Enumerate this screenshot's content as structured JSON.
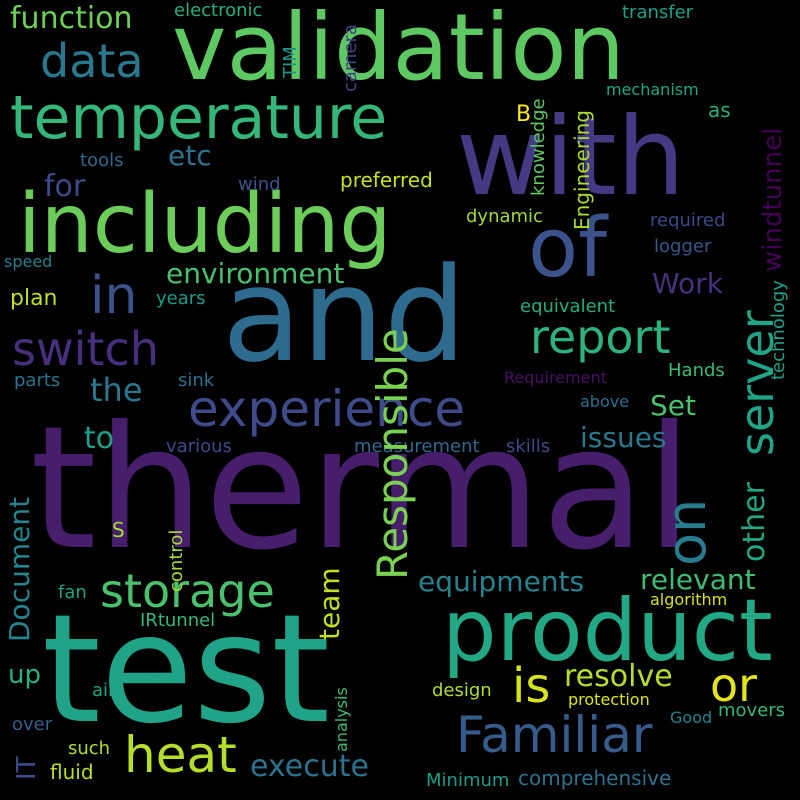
{
  "words": [
    {
      "text": "thermal",
      "color": "#471e6b"
    },
    {
      "text": "test",
      "color": "#20a386"
    },
    {
      "text": "and",
      "color": "#2f6b8e"
    },
    {
      "text": "validation",
      "color": "#5ec962"
    },
    {
      "text": "with",
      "color": "#443a83"
    },
    {
      "text": "including",
      "color": "#6ccd5a"
    },
    {
      "text": "product",
      "color": "#22a884"
    },
    {
      "text": "temperature",
      "color": "#35b779"
    },
    {
      "text": "of",
      "color": "#3b528b"
    },
    {
      "text": "experience",
      "color": "#3e4a89"
    },
    {
      "text": "Familiar",
      "color": "#365c8d"
    },
    {
      "text": "heat",
      "color": "#b5de2b"
    },
    {
      "text": "storage",
      "color": "#4ac16d"
    },
    {
      "text": "report",
      "color": "#2db27d"
    },
    {
      "text": "switch",
      "color": "#472f7d"
    },
    {
      "text": "in",
      "color": "#3b528b"
    },
    {
      "text": "data",
      "color": "#2a788e"
    },
    {
      "text": "is",
      "color": "#d8e219"
    },
    {
      "text": "or",
      "color": "#e5e419"
    },
    {
      "text": "function",
      "color": "#6ece58"
    },
    {
      "text": "environment",
      "color": "#48c16e"
    },
    {
      "text": "equipments",
      "color": "#26828e"
    },
    {
      "text": "relevant",
      "color": "#3fbc73"
    },
    {
      "text": "server",
      "color": "#20a386"
    },
    {
      "text": "etc",
      "color": "#2c728e"
    },
    {
      "text": "on",
      "color": "#287c8e"
    },
    {
      "text": "Responsible",
      "color": "#7ad151"
    },
    {
      "text": "Work",
      "color": "#46327e"
    },
    {
      "text": "the",
      "color": "#2a788e"
    },
    {
      "text": "for",
      "color": "#3e4989"
    },
    {
      "text": "resolve",
      "color": "#b5de2b"
    },
    {
      "text": "execute",
      "color": "#2c728e"
    },
    {
      "text": "issues",
      "color": "#2a788e"
    },
    {
      "text": "Document",
      "color": "#25848e"
    },
    {
      "text": "team",
      "color": "#c2df23"
    },
    {
      "text": "to",
      "color": "#1f9e89"
    },
    {
      "text": "Set",
      "color": "#4ac16d"
    },
    {
      "text": "other",
      "color": "#22a785"
    },
    {
      "text": "windtunnel",
      "color": "#440154"
    },
    {
      "text": "up",
      "color": "#29af7f"
    },
    {
      "text": "IT",
      "color": "#3e4a89"
    },
    {
      "text": "fluid",
      "color": "#bddf26"
    },
    {
      "text": "air",
      "color": "#20a486"
    },
    {
      "text": "plan",
      "color": "#c0df25"
    },
    {
      "text": "electronic",
      "color": "#26ad81"
    },
    {
      "text": "transfer",
      "color": "#1fa088"
    },
    {
      "text": "TIM",
      "color": "#1f948c"
    },
    {
      "text": "camera",
      "color": "#414487"
    },
    {
      "text": "mechanism",
      "color": "#22a785"
    },
    {
      "text": "B",
      "color": "#fde725"
    },
    {
      "text": "knowledge",
      "color": "#5ec962"
    },
    {
      "text": "Engineering",
      "color": "#addc30"
    },
    {
      "text": "as",
      "color": "#29af7f"
    },
    {
      "text": "tools",
      "color": "#31688e"
    },
    {
      "text": "wind",
      "color": "#3b528b"
    },
    {
      "text": "preferred",
      "color": "#c8e020"
    },
    {
      "text": "dynamic",
      "color": "#a0da39"
    },
    {
      "text": "required",
      "color": "#3e4989"
    },
    {
      "text": "logger",
      "color": "#39568c"
    },
    {
      "text": "speed",
      "color": "#277f8e"
    },
    {
      "text": "years",
      "color": "#1e9c89"
    },
    {
      "text": "equivalent",
      "color": "#25ac82"
    },
    {
      "text": "technology",
      "color": "#1fa088"
    },
    {
      "text": "parts",
      "color": "#2c728e"
    },
    {
      "text": "sink",
      "color": "#2e6e8e"
    },
    {
      "text": "Requirement",
      "color": "#471063"
    },
    {
      "text": "Hands",
      "color": "#3bbb75"
    },
    {
      "text": "above",
      "color": "#2d708e"
    },
    {
      "text": "various",
      "color": "#3e4989"
    },
    {
      "text": "measurement",
      "color": "#31688e"
    },
    {
      "text": "skills",
      "color": "#3e4989"
    },
    {
      "text": "control",
      "color": "#a8db34"
    },
    {
      "text": "S",
      "color": "#a5db36"
    },
    {
      "text": "fan",
      "color": "#1fa088"
    },
    {
      "text": "IRtunnel",
      "color": "#35b779"
    },
    {
      "text": "algorithm",
      "color": "#d8e219"
    },
    {
      "text": "analysis",
      "color": "#3dbc74"
    },
    {
      "text": "design",
      "color": "#b0dd2f"
    },
    {
      "text": "protection",
      "color": "#dde318"
    },
    {
      "text": "movers",
      "color": "#37b878"
    },
    {
      "text": "Good",
      "color": "#26828e"
    },
    {
      "text": "over",
      "color": "#355f8d"
    },
    {
      "text": "such",
      "color": "#b2dd2d"
    },
    {
      "text": "Minimum",
      "color": "#1e9b8a"
    },
    {
      "text": "comprehensive",
      "color": "#2c728e"
    }
  ]
}
